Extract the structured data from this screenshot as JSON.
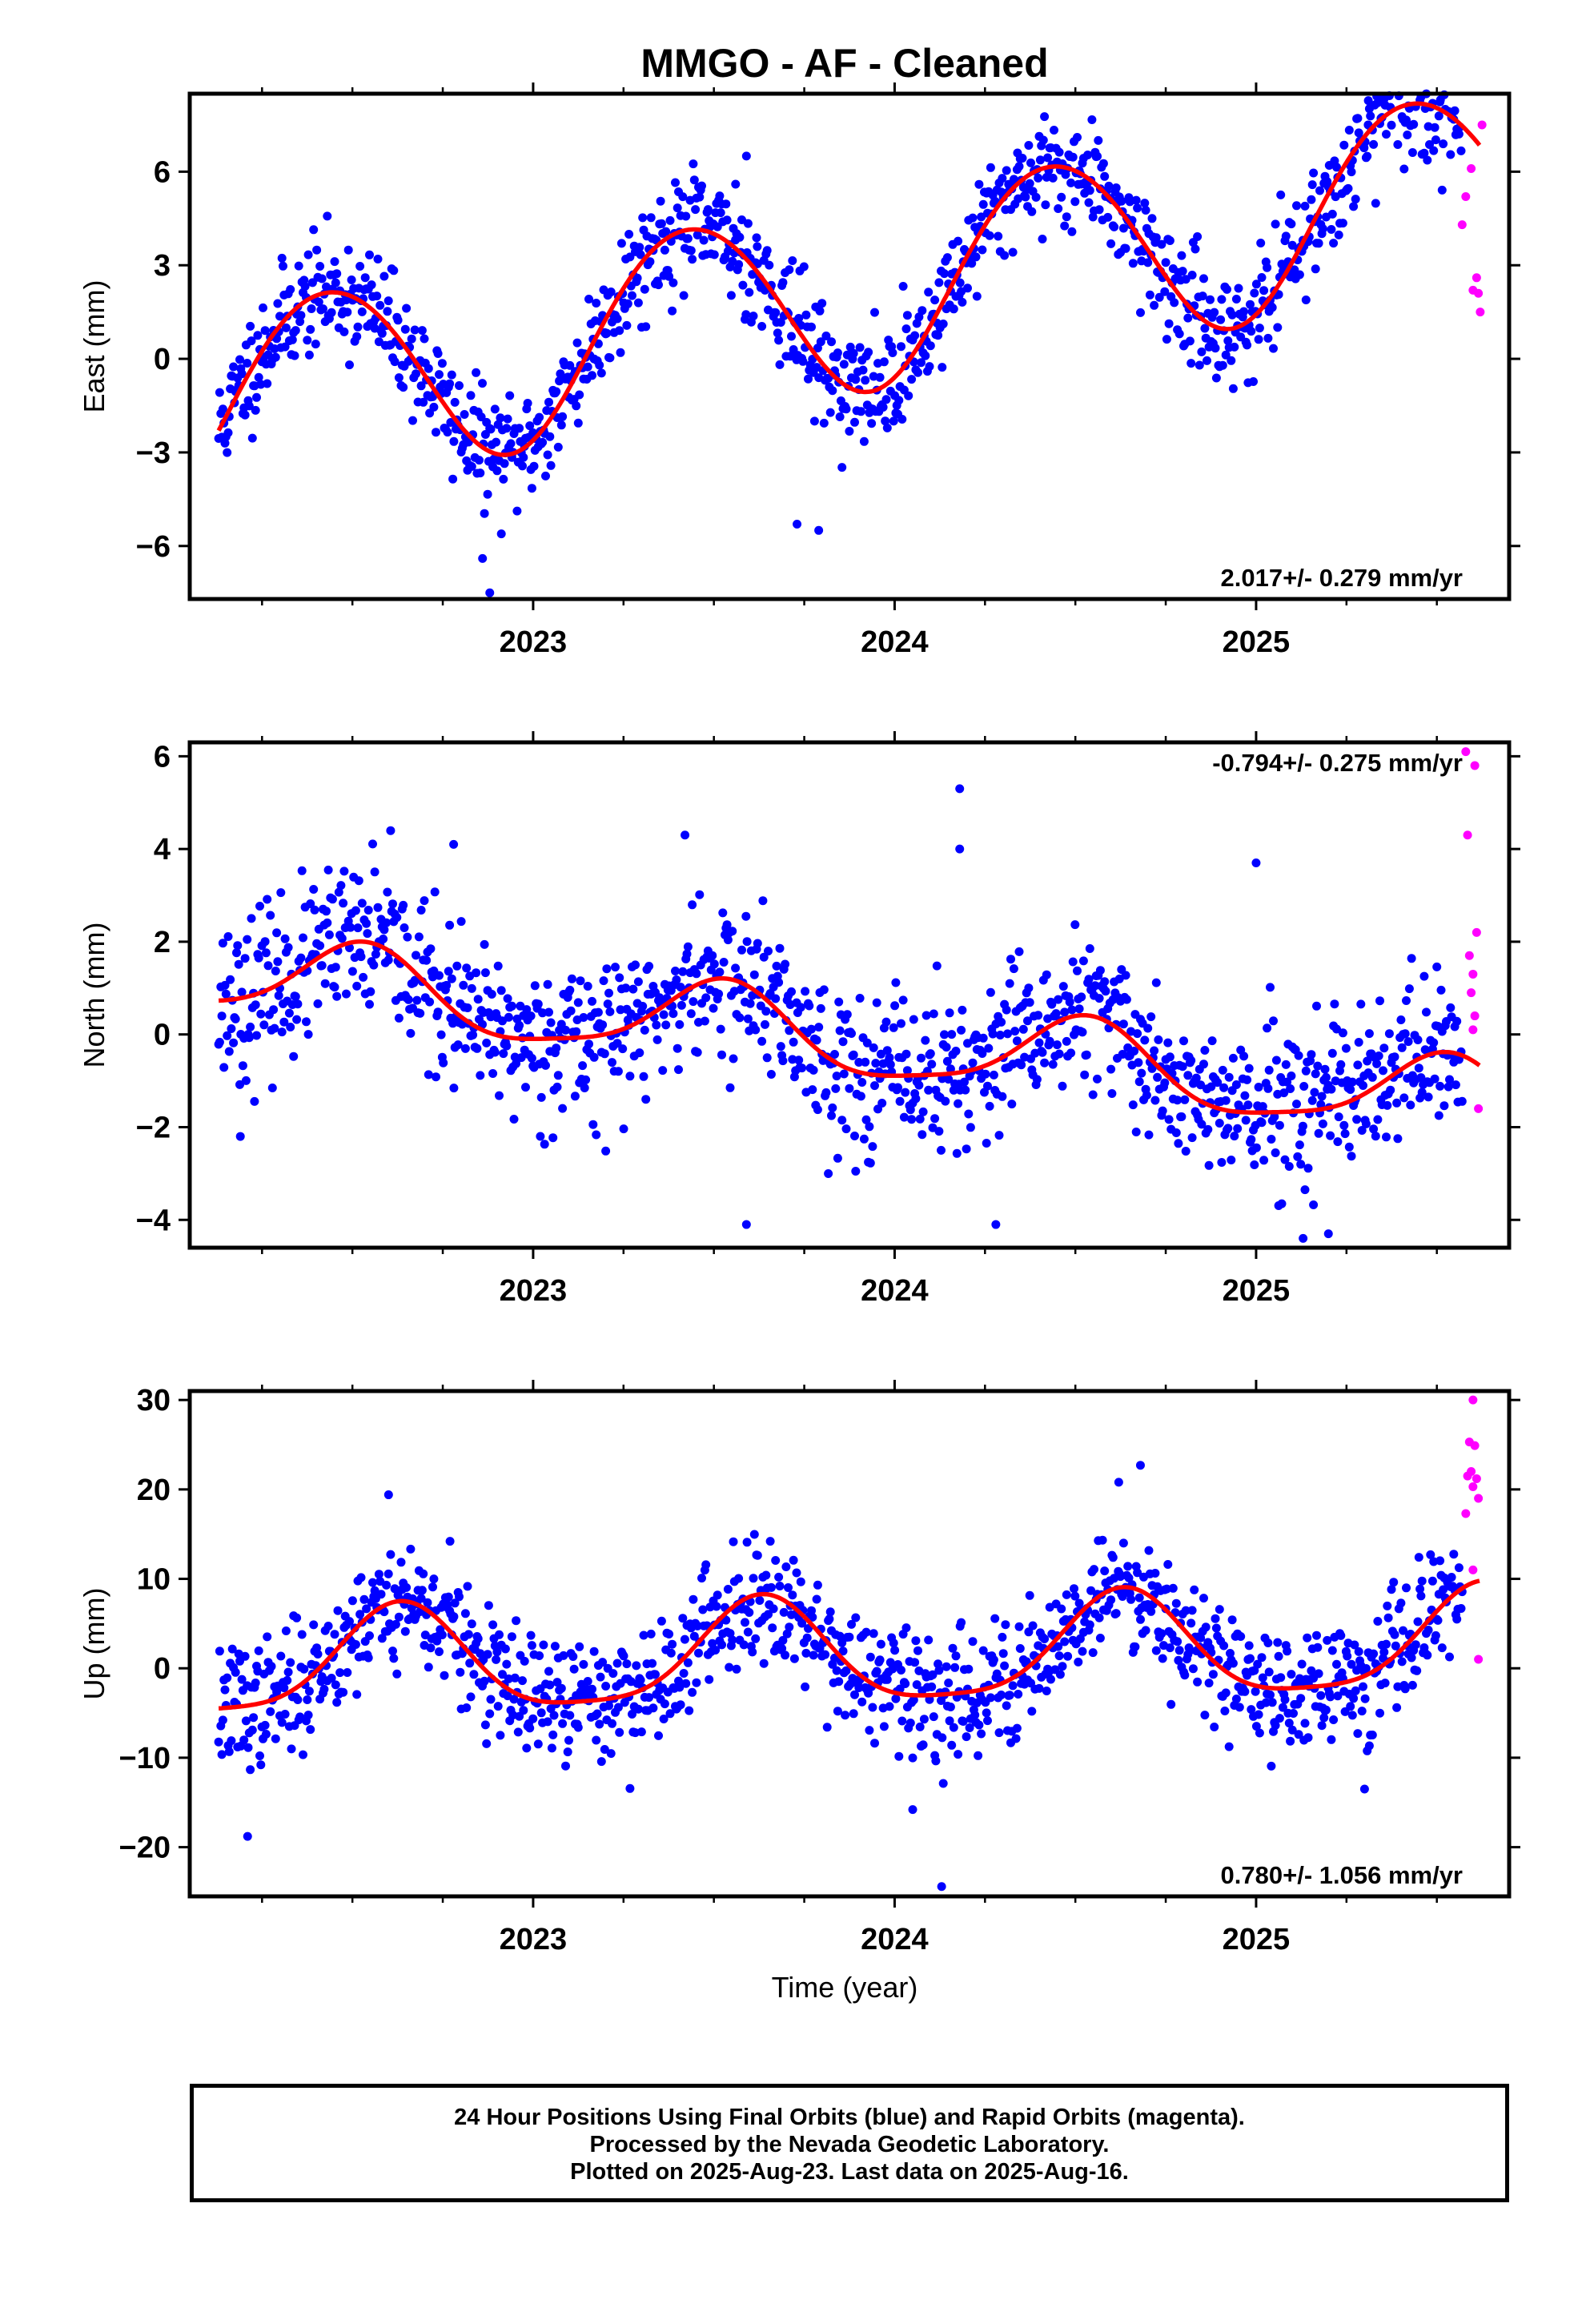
{
  "title": "MMGO  - AF - Cleaned",
  "xaxis_label": "Time (year)",
  "caption": {
    "line1": "24 Hour Positions Using Final Orbits (blue) and Rapid Orbits (magenta).",
    "line2": "Processed by the Nevada Geodetic Laboratory.",
    "line3": "Plotted on 2025-Aug-23. Last data on 2025-Aug-16."
  },
  "colors": {
    "final": "#0000ff",
    "rapid": "#ff00ff",
    "model": "#ff0000",
    "frame": "#000000"
  },
  "chart_data": [
    {
      "type": "scatter",
      "ylabel": "East (mm)",
      "rate_label": "2.017+/- 0.279 mm/yr",
      "rate_position": "bottom-right",
      "xlim": [
        2022.05,
        2025.7
      ],
      "ylim": [
        -7.7,
        8.5
      ],
      "yticks": [
        -6,
        -3,
        0,
        3,
        6
      ],
      "xticks": [
        2023,
        2024,
        2025
      ],
      "xminor": [
        2022.25,
        2022.5,
        2022.75,
        2023.25,
        2023.5,
        2023.75,
        2024.25,
        2024.5,
        2024.75,
        2025.25,
        2025.5
      ],
      "model": {
        "offset": -1.5,
        "rate": 2.017,
        "annual_amp": 3.1,
        "annual_peak": 0.43,
        "semi_amp": 0.15,
        "semi_peak": 0.2
      },
      "noise_sd": 0.9,
      "seed": 11,
      "final_range": [
        2022.13,
        2025.57
      ],
      "n_final": 1180,
      "rapid": [
        [
          2025.57,
          4.3
        ],
        [
          2025.58,
          5.2
        ],
        [
          2025.595,
          6.1
        ],
        [
          2025.6,
          2.2
        ],
        [
          2025.61,
          2.6
        ],
        [
          2025.615,
          2.1
        ],
        [
          2025.62,
          1.5
        ],
        [
          2025.625,
          7.5
        ]
      ],
      "outliers": [
        [
          2023.59,
          6.5
        ],
        [
          2023.56,
          5.6
        ],
        [
          2023.62,
          3.6
        ],
        [
          2024.34,
          6.6
        ],
        [
          2025.51,
          8.3
        ],
        [
          2025.31,
          7.5
        ],
        [
          2022.88,
          -7.5
        ],
        [
          2022.86,
          -6.4
        ],
        [
          2023.73,
          -5.3
        ],
        [
          2023.79,
          -5.5
        ]
      ]
    },
    {
      "type": "scatter",
      "ylabel": "North (mm)",
      "rate_label": "-0.794+/- 0.275 mm/yr",
      "rate_position": "top-right",
      "xlim": [
        2022.05,
        2025.7
      ],
      "ylim": [
        -4.6,
        6.3
      ],
      "yticks": [
        -4,
        -2,
        0,
        2,
        4,
        6
      ],
      "xticks": [
        2023,
        2024,
        2025
      ],
      "xminor": [
        2022.25,
        2022.5,
        2022.75,
        2023.25,
        2023.5,
        2023.75,
        2024.25,
        2024.5,
        2024.75,
        2025.25,
        2025.5
      ],
      "model": {
        "offset": 1.3,
        "rate": -0.794,
        "annual_amp": 0.85,
        "annual_peak": 0.52,
        "semi_amp": 0.2,
        "semi_peak": 0.05
      },
      "noise_sd": 0.85,
      "seed": 23,
      "final_range": [
        2022.13,
        2025.57
      ],
      "n_final": 1180,
      "rapid": [
        [
          2025.58,
          6.1
        ],
        [
          2025.605,
          5.8
        ],
        [
          2025.585,
          4.3
        ],
        [
          2025.61,
          2.2
        ],
        [
          2025.59,
          1.7
        ],
        [
          2025.6,
          1.3
        ],
        [
          2025.595,
          0.9
        ],
        [
          2025.605,
          0.4
        ],
        [
          2025.6,
          0.1
        ],
        [
          2025.615,
          -1.6
        ]
      ],
      "outliers": [
        [
          2024.18,
          5.3
        ],
        [
          2024.18,
          4.0
        ],
        [
          2023.42,
          4.3
        ],
        [
          2022.78,
          4.1
        ],
        [
          2025.0,
          3.7
        ],
        [
          2023.59,
          -4.1
        ],
        [
          2024.28,
          -4.1
        ],
        [
          2022.19,
          -2.2
        ],
        [
          2025.13,
          -4.4
        ],
        [
          2025.2,
          -4.3
        ]
      ]
    },
    {
      "type": "scatter",
      "ylabel": "Up (mm)",
      "rate_label": "0.780+/- 1.056 mm/yr",
      "rate_position": "bottom-right",
      "xlim": [
        2022.05,
        2025.7
      ],
      "ylim": [
        -25.5,
        31.0
      ],
      "yticks": [
        -20,
        -10,
        0,
        10,
        20,
        30
      ],
      "xticks": [
        2023,
        2024,
        2025
      ],
      "xminor": [
        2022.25,
        2022.5,
        2022.75,
        2023.25,
        2023.5,
        2023.75,
        2024.25,
        2024.5,
        2024.75,
        2025.25,
        2025.5
      ],
      "model": {
        "offset": 0.0,
        "rate": 0.78,
        "annual_amp": 5.8,
        "annual_peak": 0.63,
        "semi_amp": 1.3,
        "semi_peak": 0.14
      },
      "noise_sd": 3.4,
      "seed": 37,
      "final_range": [
        2022.13,
        2025.57
      ],
      "n_final": 1180,
      "rapid": [
        [
          2025.6,
          30.0
        ],
        [
          2025.59,
          25.3
        ],
        [
          2025.605,
          24.9
        ],
        [
          2025.595,
          22.0
        ],
        [
          2025.61,
          21.2
        ],
        [
          2025.585,
          21.5
        ],
        [
          2025.6,
          20.3
        ],
        [
          2025.615,
          19.0
        ],
        [
          2025.58,
          17.3
        ],
        [
          2025.6,
          11.0
        ],
        [
          2025.615,
          1.0
        ]
      ],
      "outliers": [
        [
          2022.21,
          -18.8
        ],
        [
          2024.13,
          -24.4
        ],
        [
          2022.6,
          19.4
        ],
        [
          2024.62,
          20.8
        ],
        [
          2024.68,
          22.7
        ],
        [
          2022.77,
          14.2
        ],
        [
          2024.05,
          -15.8
        ],
        [
          2025.3,
          -13.5
        ]
      ]
    }
  ]
}
